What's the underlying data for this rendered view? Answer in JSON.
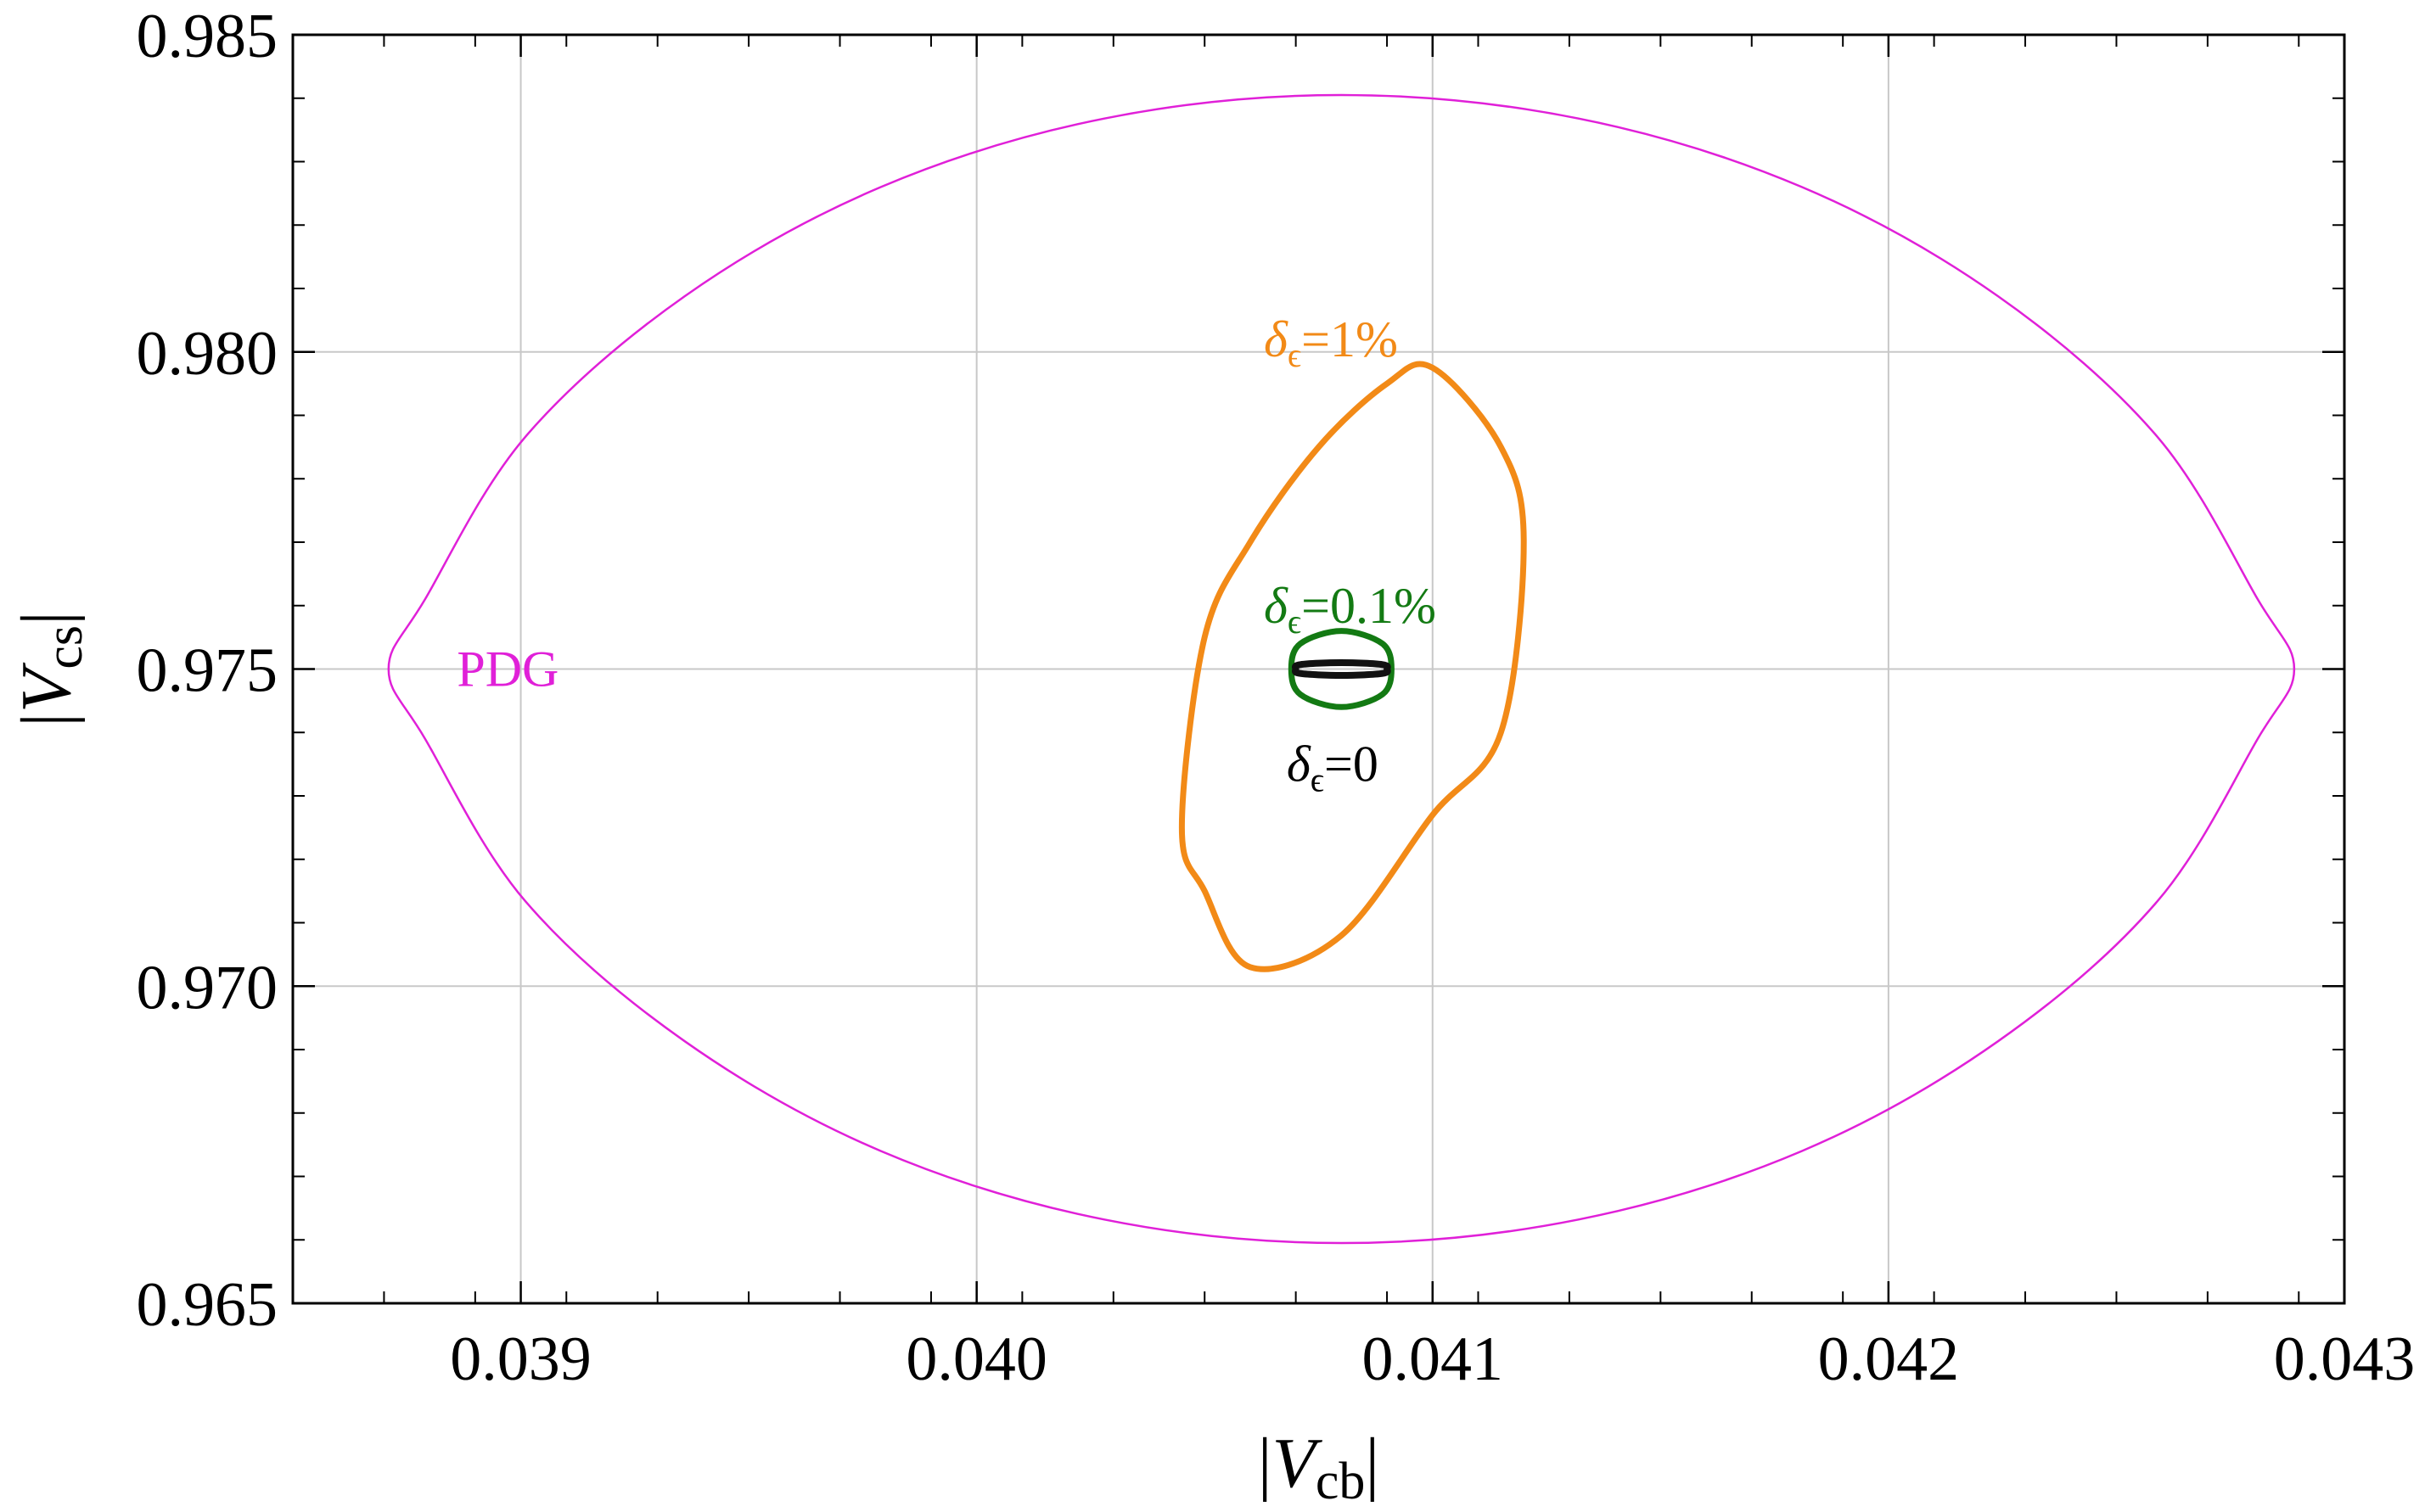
{
  "chart_data": {
    "type": "line",
    "title": "",
    "xlabel": {
      "prefix": "|",
      "var": "V",
      "sub": "cb",
      "suffix": "|"
    },
    "ylabel": {
      "prefix": "|",
      "var": "V",
      "sub": "cs",
      "suffix": "|"
    },
    "xlim": [
      0.0385,
      0.043
    ],
    "ylim": [
      0.965,
      0.985
    ],
    "xticks": [
      0.039,
      0.04,
      0.041,
      0.042,
      0.043
    ],
    "xtick_labels": [
      "0.039",
      "0.040",
      "0.041",
      "0.042",
      "0.043"
    ],
    "yticks": [
      0.965,
      0.97,
      0.975,
      0.98,
      0.985
    ],
    "ytick_labels": [
      "0.965",
      "0.970",
      "0.975",
      "0.980",
      "0.985"
    ],
    "grid": true,
    "colors": {
      "grid": "#c8c8c8",
      "frame": "#000000"
    },
    "series": [
      {
        "name": "PDG",
        "color": "#e020d8",
        "x": [
          0.0408,
          0.04132,
          0.04181,
          0.04224,
          0.04259,
          0.04281,
          0.04289,
          0.04281,
          0.04259,
          0.04224,
          0.04181,
          0.04132,
          0.0408,
          0.04028,
          0.03979,
          0.03936,
          0.03901,
          0.03879,
          0.03871,
          0.03879,
          0.03901,
          0.03936,
          0.03979,
          0.04028,
          0.0408
        ],
        "y": [
          0.98405,
          0.98368,
          0.9826,
          0.98088,
          0.97866,
          0.9761,
          0.975,
          0.9739,
          0.97134,
          0.96913,
          0.9674,
          0.96632,
          0.96595,
          0.96632,
          0.9674,
          0.96913,
          0.97134,
          0.9739,
          0.975,
          0.9761,
          0.97866,
          0.98088,
          0.9826,
          0.98368,
          0.98405
        ]
      },
      {
        "name": "δϵ=1%",
        "color": "#f28a17",
        "x": [
          0.041,
          0.04115,
          0.0412,
          0.04115,
          0.041,
          0.0408,
          0.0406,
          0.0405,
          0.04045,
          0.0405,
          0.0406,
          0.04075,
          0.0409,
          0.041
        ],
        "y": [
          0.97975,
          0.9785,
          0.977,
          0.974,
          0.9727,
          0.9708,
          0.9703,
          0.9715,
          0.9725,
          0.9755,
          0.977,
          0.9785,
          0.9795,
          0.97975
        ]
      },
      {
        "name": "δϵ=0.1%",
        "color": "#137a13",
        "x": [
          0.0408,
          0.04089,
          0.04091,
          0.04089,
          0.0408,
          0.04071,
          0.04069,
          0.04071,
          0.0408
        ],
        "y": [
          0.9756,
          0.9754,
          0.975,
          0.9746,
          0.9744,
          0.9746,
          0.975,
          0.9754,
          0.9756
        ]
      },
      {
        "name": "δϵ=0",
        "color": "#111111",
        "x": [
          0.0408,
          0.04089,
          0.0409,
          0.04089,
          0.0408,
          0.04071,
          0.0407,
          0.04071,
          0.0408
        ],
        "y": [
          0.9751,
          0.97507,
          0.975,
          0.97493,
          0.9749,
          0.97493,
          0.975,
          0.97507,
          0.9751
        ]
      }
    ],
    "annotations": [
      {
        "text": "PDG",
        "x": 0.03886,
        "y": 0.975,
        "color": "#e020d8"
      },
      {
        "sym": "δ",
        "sub": "ϵ",
        "rest": "=1%",
        "x": 0.04063,
        "y": 0.9802,
        "color": "#f28a17"
      },
      {
        "sym": "δ",
        "sub": "ϵ",
        "rest": "=0.1%",
        "x": 0.04063,
        "y": 0.976,
        "color": "#137a13"
      },
      {
        "sym": "δ",
        "sub": "ϵ",
        "rest": "=0",
        "x": 0.04068,
        "y": 0.9735,
        "color": "#000000"
      }
    ]
  }
}
